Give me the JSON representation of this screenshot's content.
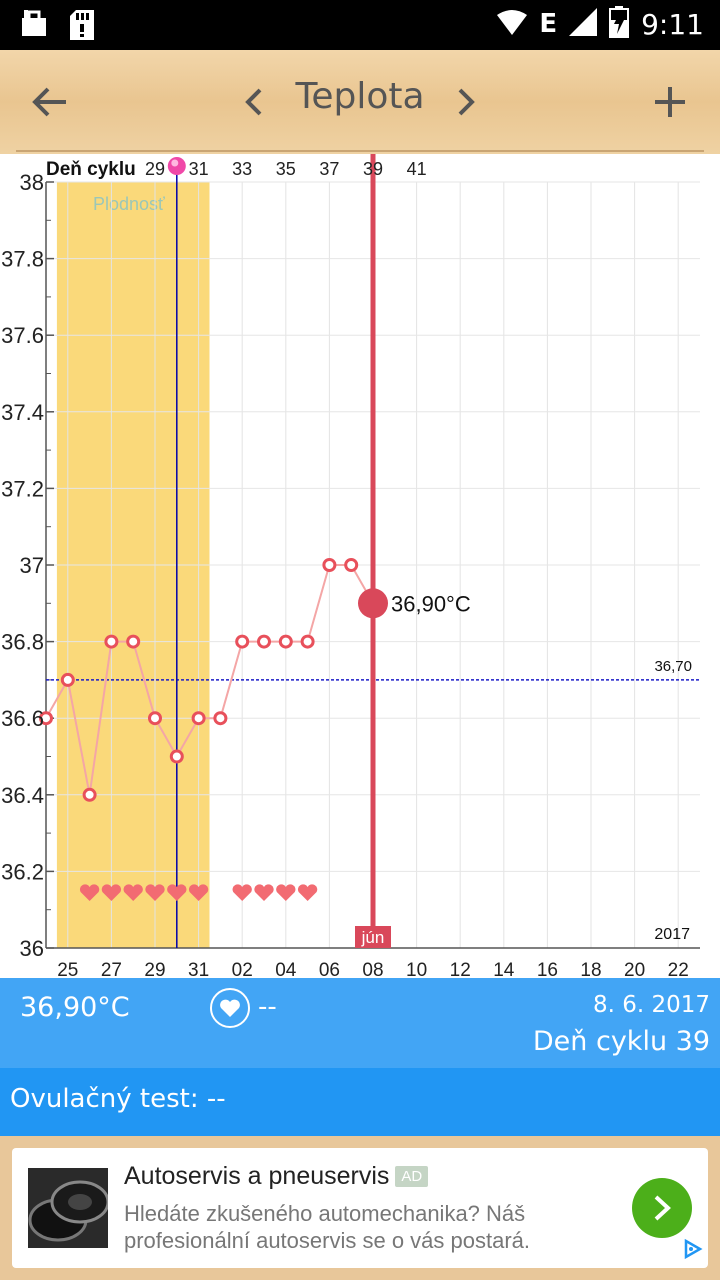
{
  "status_bar": {
    "time": "9:11",
    "network": "E"
  },
  "toolbar": {
    "title": "Teplota"
  },
  "chart_data": {
    "type": "line",
    "cycle_day_label": "Deň cyklu",
    "top_ticks": [
      "29",
      "31",
      "33",
      "35",
      "37",
      "39",
      "41"
    ],
    "y_ticks": [
      "38",
      "37.8",
      "37.6",
      "37.4",
      "37.2",
      "37",
      "36.8",
      "36.6",
      "36.4",
      "36.2",
      "36"
    ],
    "ylim": [
      36,
      38
    ],
    "x_tick_labels": [
      "25",
      "27",
      "29",
      "31",
      "02",
      "04",
      "06",
      "08",
      "10",
      "12",
      "14",
      "16",
      "18",
      "20",
      "22"
    ],
    "points": [
      {
        "x": 24,
        "y": 36.6
      },
      {
        "x": 25,
        "y": 36.7
      },
      {
        "x": 26,
        "y": 36.4
      },
      {
        "x": 27,
        "y": 36.8
      },
      {
        "x": 28,
        "y": 36.8
      },
      {
        "x": 29,
        "y": 36.6
      },
      {
        "x": 30,
        "y": 36.5
      },
      {
        "x": 31,
        "y": 36.6
      },
      {
        "x": 32,
        "y": 36.6
      },
      {
        "x": 33,
        "y": 36.8
      },
      {
        "x": 34,
        "y": 36.8
      },
      {
        "x": 35,
        "y": 36.8
      },
      {
        "x": 36,
        "y": 36.8
      },
      {
        "x": 37,
        "y": 37.0
      },
      {
        "x": 38,
        "y": 37.0
      },
      {
        "x": 39,
        "y": 36.9
      }
    ],
    "selected_point": {
      "x": 39,
      "y": 36.9,
      "label": "36,90°C"
    },
    "coverline": {
      "y": 36.7,
      "label": "36,70"
    },
    "fertile_window": {
      "label": "Plodnosť",
      "from": 24.5,
      "to": 31.5
    },
    "ovulation_day": 30,
    "heart_days": [
      26,
      27,
      28,
      29,
      30,
      31,
      33,
      34,
      35,
      36
    ],
    "month_label": "jún",
    "year_label": "2017",
    "colors": {
      "line": "#f4a6a6",
      "marker": "#e8505b",
      "selected": "#d9485a",
      "fertile": "#fad97a",
      "coverline": "#1a1ac8",
      "ovulation": "#0000aa",
      "heart": "#f26b72"
    }
  },
  "info": {
    "temperature": "36,90°C",
    "intercourse": "--",
    "date": "8. 6. 2017",
    "cycle_day": "Deň cyklu 39"
  },
  "ovulation_test": {
    "label": "Ovulačný test: --"
  },
  "ad": {
    "title": "Autoservis a pneuservis",
    "badge": "AD",
    "description": "Hledáte zkušeného automechanika? Náš profesionální autoservis se o vás postará."
  }
}
